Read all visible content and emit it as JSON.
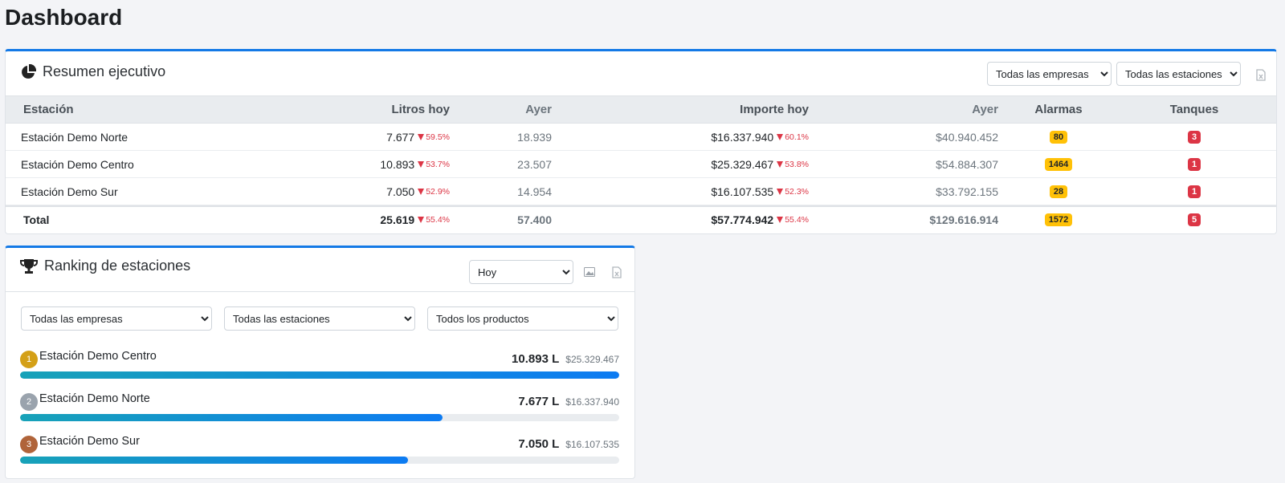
{
  "page": {
    "title": "Dashboard"
  },
  "summary": {
    "title": "Resumen ejecutivo",
    "filters": {
      "company": "Todas las empresas",
      "station": "Todas las estaciones"
    },
    "columns": {
      "station": "Estación",
      "liters_today": "Litros hoy",
      "liters_yesterday": "Ayer",
      "amount_today": "Importe hoy",
      "amount_yesterday": "Ayer",
      "alarms": "Alarmas",
      "tanks": "Tanques"
    },
    "rows": [
      {
        "station": "Estación Demo Norte",
        "liters": "7.677",
        "liters_delta": "59.5%",
        "liters_yesterday": "18.939",
        "amount": "$16.337.940",
        "amount_delta": "60.1%",
        "amount_yesterday": "$40.940.452",
        "alarms": "80",
        "tanks": "3"
      },
      {
        "station": "Estación Demo Centro",
        "liters": "10.893",
        "liters_delta": "53.7%",
        "liters_yesterday": "23.507",
        "amount": "$25.329.467",
        "amount_delta": "53.8%",
        "amount_yesterday": "$54.884.307",
        "alarms": "1464",
        "tanks": "1"
      },
      {
        "station": "Estación Demo Sur",
        "liters": "7.050",
        "liters_delta": "52.9%",
        "liters_yesterday": "14.954",
        "amount": "$16.107.535",
        "amount_delta": "52.3%",
        "amount_yesterday": "$33.792.155",
        "alarms": "28",
        "tanks": "1"
      }
    ],
    "total": {
      "label": "Total",
      "liters": "25.619",
      "liters_delta": "55.4%",
      "liters_yesterday": "57.400",
      "amount": "$57.774.942",
      "amount_delta": "55.4%",
      "amount_yesterday": "$129.616.914",
      "alarms": "1572",
      "tanks": "5"
    }
  },
  "ranking": {
    "title": "Ranking de estaciones",
    "period": "Hoy",
    "filters": {
      "company": "Todas las empresas",
      "station": "Todas las estaciones",
      "product": "Todos los productos"
    },
    "items": [
      {
        "rank": "1",
        "name": "Estación Demo Centro",
        "liters": "10.893 L",
        "amount": "$25.329.467",
        "share": 1.0,
        "medal_color": "#d4a017"
      },
      {
        "rank": "2",
        "name": "Estación Demo Norte",
        "liters": "7.677 L",
        "amount": "$16.337.940",
        "share": 0.705,
        "medal_color": "#9aa3ad"
      },
      {
        "rank": "3",
        "name": "Estación Demo Sur",
        "liters": "7.050 L",
        "amount": "$16.107.535",
        "share": 0.647,
        "medal_color": "#b0643a"
      }
    ]
  },
  "colors": {
    "accent": "#1479e6",
    "danger": "#dc3545",
    "warning": "#ffc107"
  },
  "icons": {
    "summary": "pie-chart-icon",
    "ranking": "trophy-icon",
    "excel": "excel-file-icon",
    "image": "image-icon"
  }
}
